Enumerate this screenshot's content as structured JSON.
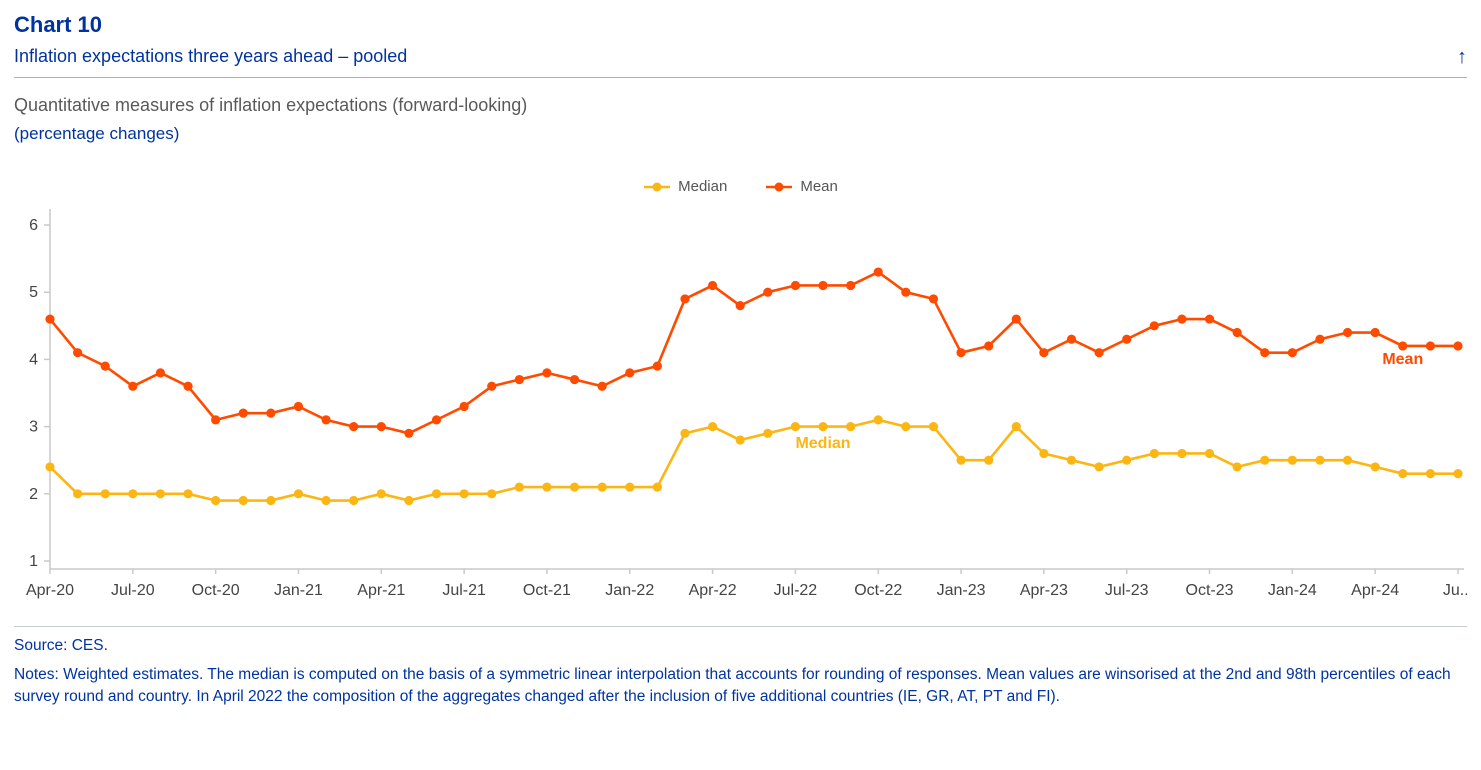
{
  "header": {
    "chart_number": "Chart 10",
    "chart_title": "Inflation expectations three years ahead – pooled",
    "back_arrow": "↑"
  },
  "description": {
    "line1": "Quantitative measures of inflation expectations (forward-looking)",
    "line2": "(percentage changes)"
  },
  "colors": {
    "median": "#FCB614",
    "mean": "#FF4B00",
    "title_blue": "#0033A0",
    "axis_gray": "#c9c9c9",
    "tick_text": "#444444"
  },
  "chart_data": {
    "type": "line",
    "title": "Inflation expectations three years ahead – pooled",
    "ylabel": "",
    "xlabel": "",
    "ylim": [
      1,
      6
    ],
    "yticks": [
      1,
      2,
      3,
      4,
      5,
      6
    ],
    "grid": false,
    "legend_position": "top-center",
    "x": [
      "Apr-20",
      "May-20",
      "Jun-20",
      "Jul-20",
      "Aug-20",
      "Sep-20",
      "Oct-20",
      "Nov-20",
      "Dec-20",
      "Jan-21",
      "Feb-21",
      "Mar-21",
      "Apr-21",
      "May-21",
      "Jun-21",
      "Jul-21",
      "Aug-21",
      "Sep-21",
      "Oct-21",
      "Nov-21",
      "Dec-21",
      "Jan-22",
      "Feb-22",
      "Mar-22",
      "Apr-22",
      "May-22",
      "Jun-22",
      "Jul-22",
      "Aug-22",
      "Sep-22",
      "Oct-22",
      "Nov-22",
      "Dec-22",
      "Jan-23",
      "Feb-23",
      "Mar-23",
      "Apr-23",
      "May-23",
      "Jun-23",
      "Jul-23",
      "Aug-23",
      "Sep-23",
      "Oct-23",
      "Nov-23",
      "Dec-23",
      "Jan-24",
      "Feb-24",
      "Mar-24",
      "Apr-24",
      "May-24",
      "Jun-24",
      "Jul-24"
    ],
    "x_tick_labels": [
      "Apr-20",
      "Jul-20",
      "Oct-20",
      "Jan-21",
      "Apr-21",
      "Jul-21",
      "Oct-21",
      "Jan-22",
      "Apr-22",
      "Jul-22",
      "Oct-22",
      "Jan-23",
      "Apr-23",
      "Jul-23",
      "Oct-23",
      "Jan-24",
      "Apr-24",
      "Ju..."
    ],
    "x_tick_step": 3,
    "series": [
      {
        "name": "Median",
        "color": "#FCB614",
        "values": [
          2.4,
          2.0,
          2.0,
          2.0,
          2.0,
          2.0,
          1.9,
          1.9,
          1.9,
          2.0,
          1.9,
          1.9,
          2.0,
          1.9,
          2.0,
          2.0,
          2.0,
          2.1,
          2.1,
          2.1,
          2.1,
          2.1,
          2.1,
          2.9,
          3.0,
          2.8,
          2.9,
          3.0,
          3.0,
          3.0,
          3.1,
          3.0,
          3.0,
          2.5,
          2.5,
          3.0,
          2.6,
          2.5,
          2.4,
          2.5,
          2.6,
          2.6,
          2.6,
          2.4,
          2.5,
          2.5,
          2.5,
          2.5,
          2.4,
          2.3,
          2.3,
          2.3
        ]
      },
      {
        "name": "Mean",
        "color": "#FF4B00",
        "values": [
          4.6,
          4.1,
          3.9,
          3.6,
          3.8,
          3.6,
          3.1,
          3.2,
          3.2,
          3.3,
          3.1,
          3.0,
          3.0,
          2.9,
          3.1,
          3.3,
          3.6,
          3.7,
          3.8,
          3.7,
          3.6,
          3.8,
          3.9,
          4.9,
          5.1,
          4.8,
          5.0,
          5.1,
          5.1,
          5.1,
          5.3,
          5.0,
          4.9,
          4.1,
          4.2,
          4.6,
          4.1,
          4.3,
          4.1,
          4.3,
          4.5,
          4.6,
          4.6,
          4.4,
          4.1,
          4.1,
          4.3,
          4.4,
          4.4,
          4.2,
          4.2,
          4.2
        ]
      }
    ],
    "annotations": [
      {
        "text": "Median",
        "x_index": 28,
        "y": 2.68,
        "color": "#FCB614"
      },
      {
        "text": "Mean",
        "x_index": 49,
        "y": 3.93,
        "color": "#FF4B00"
      }
    ]
  },
  "footer": {
    "source": "Source: CES.",
    "notes": "Notes: Weighted estimates. The median is computed on the basis of a symmetric linear interpolation that accounts for rounding of responses. Mean values are winsorised at the 2nd and 98th percentiles of each survey round and country. In April 2022 the composition of the aggregates changed after the inclusion of five additional countries (IE, GR, AT, PT and FI)."
  }
}
